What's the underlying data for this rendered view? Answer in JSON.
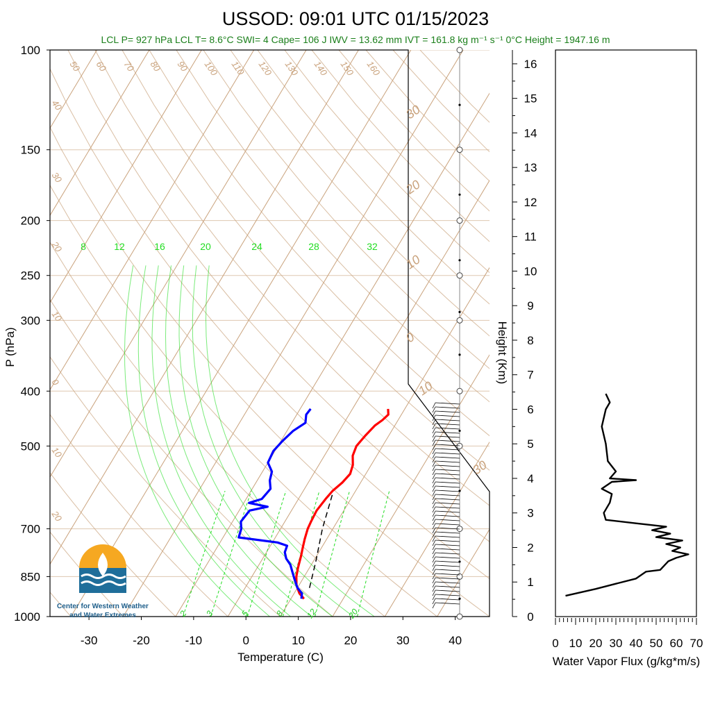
{
  "title": "USSOD: 09:01 UTC 01/15/2023",
  "info_line": "LCL P= 927 hPa  LCL T= 8.6°C  SWI= 4  Cape= 106 J  IWV = 13.62 mm  IVT = 161.8 kg m⁻¹ s⁻¹  0°C Height = 1947.16 m",
  "logo": {
    "line1": "Center for Western Weather",
    "line2": "and Water Extremes"
  },
  "colors": {
    "temperature": "#ff0000",
    "dewpoint": "#0000ff",
    "isotherm": "#c9a27c",
    "mixing_ratio": "#22dd22",
    "info": "#1a7f1a"
  },
  "chart_data": [
    {
      "type": "line",
      "name": "skew-t",
      "xlabel": "Temperature (C)",
      "ylabel": "P (hPa)",
      "xlim": [
        -34,
        50
      ],
      "ylim": [
        1000,
        100
      ],
      "y_scale": "log",
      "x_ticks": [
        "-30",
        "-20",
        "-10",
        "0",
        "10",
        "20",
        "30",
        "40"
      ],
      "y_ticks": [
        "100",
        "150",
        "200",
        "250",
        "300",
        "400",
        "500",
        "700",
        "850",
        "1000"
      ],
      "isotherm_labels": [
        "50",
        "60",
        "70",
        "80",
        "90",
        "100",
        "110",
        "120",
        "130",
        "140",
        "150",
        "160",
        "40",
        "30",
        "20",
        "10",
        "0",
        "10",
        "20"
      ],
      "right_labels": [
        "30",
        "20",
        "10",
        "0",
        "10",
        "30"
      ],
      "mixing_ratio_top": [
        "8",
        "12",
        "16",
        "20",
        "24",
        "28",
        "32"
      ],
      "mixing_ratio_bottom": [
        "2",
        "3",
        "5",
        "8",
        "12",
        "20"
      ],
      "series": [
        {
          "key": "temperature",
          "points": [
            [
              12.5,
              930
            ],
            [
              11,
              910
            ],
            [
              9.5,
              880
            ],
            [
              8.5,
              850
            ],
            [
              7.8,
              820
            ],
            [
              7,
              780
            ],
            [
              6.5,
              760
            ],
            [
              5.8,
              730
            ],
            [
              5.2,
              700
            ],
            [
              5,
              680
            ],
            [
              4.8,
              650
            ],
            [
              5.2,
              620
            ],
            [
              5.6,
              600
            ],
            [
              6.5,
              580
            ],
            [
              7,
              560
            ],
            [
              6.5,
              540
            ],
            [
              5.4,
              520
            ],
            [
              5,
              500
            ],
            [
              5.5,
              480
            ],
            [
              6.2,
              460
            ],
            [
              7,
              450
            ],
            [
              7.5,
              440
            ],
            [
              6.8,
              430
            ]
          ]
        },
        {
          "key": "dewpoint",
          "points": [
            [
              12,
              930
            ],
            [
              11.5,
              910
            ],
            [
              10,
              890
            ],
            [
              8.5,
              860
            ],
            [
              7,
              830
            ],
            [
              6,
              810
            ],
            [
              4.5,
              790
            ],
            [
              3.5,
              770
            ],
            [
              3.2,
              750
            ],
            [
              1,
              740
            ],
            [
              -7,
              725
            ],
            [
              -7.5,
              700
            ],
            [
              -8.4,
              680
            ],
            [
              -8,
              650
            ],
            [
              -5,
              640
            ],
            [
              -9,
              630
            ],
            [
              -7,
              620
            ],
            [
              -6.5,
              595
            ],
            [
              -7.6,
              575
            ],
            [
              -8.2,
              555
            ],
            [
              -10,
              535
            ],
            [
              -10.3,
              510
            ],
            [
              -9.7,
              490
            ],
            [
              -8.8,
              470
            ],
            [
              -7.4,
              455
            ],
            [
              -8.2,
              440
            ],
            [
              -8,
              430
            ]
          ]
        },
        {
          "key": "parcel",
          "points": [
            [
              6,
              610
            ],
            [
              8,
              700
            ],
            [
              10.5,
              800
            ],
            [
              12.5,
              900
            ]
          ]
        }
      ]
    },
    {
      "type": "line",
      "name": "water-vapor-flux",
      "xlabel": "Water Vapor Flux (g/kg*m/s)",
      "ylabel": "Height (Km)",
      "xlim": [
        0,
        70
      ],
      "ylim": [
        0,
        16.4
      ],
      "x_ticks": [
        "0",
        "10",
        "20",
        "30",
        "40",
        "50",
        "60",
        "70"
      ],
      "y_ticks": [
        "0",
        "1",
        "2",
        "3",
        "4",
        "5",
        "6",
        "7",
        "8",
        "9",
        "10",
        "11",
        "12",
        "13",
        "14",
        "15",
        "16"
      ],
      "series": [
        {
          "key": "flux",
          "points": [
            [
              5,
              0.6
            ],
            [
              20,
              0.8
            ],
            [
              30,
              0.95
            ],
            [
              40,
              1.1
            ],
            [
              45,
              1.3
            ],
            [
              52,
              1.35
            ],
            [
              56,
              1.6
            ],
            [
              60,
              1.7
            ],
            [
              66,
              1.8
            ],
            [
              58,
              1.9
            ],
            [
              62,
              2
            ],
            [
              55,
              2.1
            ],
            [
              63,
              2.2
            ],
            [
              50,
              2.3
            ],
            [
              57,
              2.4
            ],
            [
              48,
              2.5
            ],
            [
              55,
              2.6
            ],
            [
              40,
              2.7
            ],
            [
              25,
              2.8
            ],
            [
              24,
              3
            ],
            [
              27,
              3.3
            ],
            [
              28,
              3.55
            ],
            [
              23,
              3.7
            ],
            [
              28,
              3.9
            ],
            [
              40,
              3.95
            ],
            [
              27,
              4
            ],
            [
              30,
              4.2
            ],
            [
              26,
              4.5
            ],
            [
              25,
              5
            ],
            [
              23,
              5.5
            ],
            [
              25,
              6
            ],
            [
              27,
              6.2
            ],
            [
              25,
              6.45
            ]
          ]
        }
      ]
    }
  ]
}
